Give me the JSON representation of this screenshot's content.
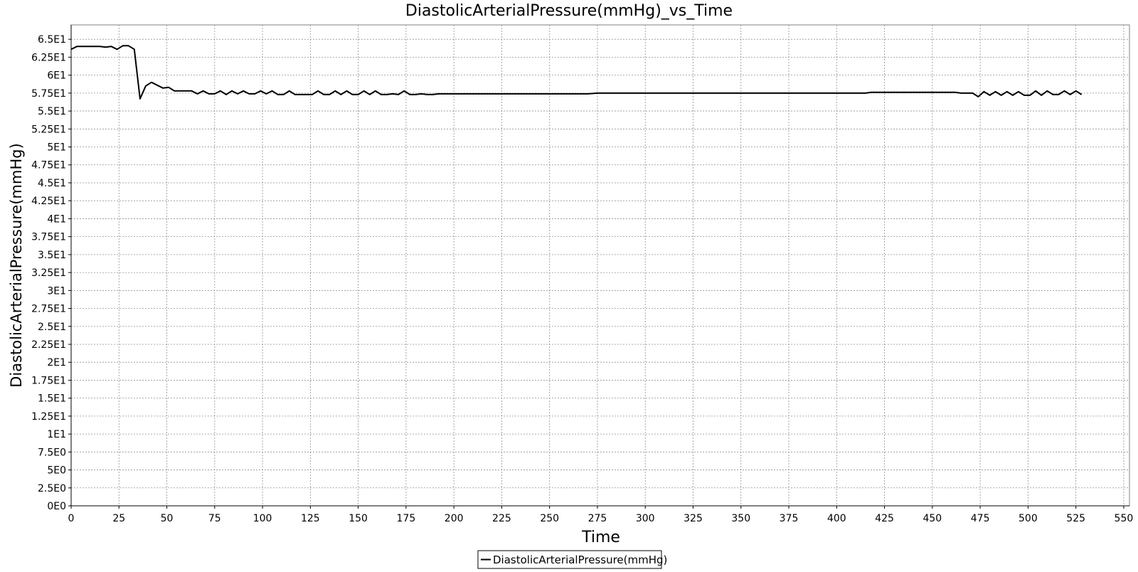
{
  "chart_data": {
    "type": "line",
    "title": "DiastolicArterialPressure(mmHg)_vs_Time",
    "xlabel": "Time",
    "ylabel": "DiastolicArterialPressure(mmHg)",
    "xlim": [
      0,
      553
    ],
    "ylim": [
      0,
      67
    ],
    "grid": true,
    "legend_position": "bottom-center",
    "x_ticks": [
      0,
      25,
      50,
      75,
      100,
      125,
      150,
      175,
      200,
      225,
      250,
      275,
      300,
      325,
      350,
      375,
      400,
      425,
      450,
      475,
      500,
      525,
      550
    ],
    "x_tick_labels": [
      "0",
      "25",
      "50",
      "75",
      "100",
      "125",
      "150",
      "175",
      "200",
      "225",
      "250",
      "275",
      "300",
      "325",
      "350",
      "375",
      "400",
      "425",
      "450",
      "475",
      "500",
      "525",
      "550"
    ],
    "y_ticks": [
      0,
      2.5,
      5,
      7.5,
      10,
      12.5,
      15,
      17.5,
      20,
      22.5,
      25,
      27.5,
      30,
      32.5,
      35,
      37.5,
      40,
      42.5,
      45,
      47.5,
      50,
      52.5,
      55,
      57.5,
      60,
      62.5,
      65
    ],
    "y_tick_labels": [
      "0E0",
      "2.5E0",
      "5E0",
      "7.5E0",
      "1E1",
      "1.25E1",
      "1.5E1",
      "1.75E1",
      "2E1",
      "2.25E1",
      "2.5E1",
      "2.75E1",
      "3E1",
      "3.25E1",
      "3.5E1",
      "3.75E1",
      "4E1",
      "4.25E1",
      "4.5E1",
      "4.75E1",
      "5E1",
      "5.25E1",
      "5.5E1",
      "5.75E1",
      "6E1",
      "6.25E1",
      "6.5E1"
    ],
    "series": [
      {
        "name": "DiastolicArterialPressure(mmHg)",
        "color": "#000000",
        "x": [
          0,
          3,
          6,
          9,
          12,
          15,
          18,
          21,
          24,
          27,
          30,
          33,
          36,
          39,
          42,
          45,
          48,
          51,
          54,
          57,
          60,
          63,
          66,
          69,
          72,
          75,
          78,
          81,
          84,
          87,
          90,
          93,
          96,
          99,
          102,
          105,
          108,
          111,
          114,
          117,
          120,
          123,
          126,
          129,
          132,
          135,
          138,
          141,
          144,
          147,
          150,
          153,
          156,
          159,
          162,
          165,
          168,
          171,
          174,
          177,
          180,
          183,
          186,
          189,
          192,
          200,
          225,
          250,
          270,
          275,
          300,
          325,
          350,
          375,
          400,
          415,
          418,
          440,
          455,
          462,
          465,
          468,
          471,
          474,
          477,
          480,
          483,
          486,
          489,
          492,
          495,
          498,
          501,
          504,
          507,
          510,
          513,
          516,
          519,
          522,
          525,
          528
        ],
        "y": [
          63.6,
          64.0,
          64.0,
          64.0,
          64.0,
          64.0,
          63.9,
          64.0,
          63.6,
          64.1,
          64.1,
          63.6,
          56.7,
          58.5,
          59.0,
          58.6,
          58.2,
          58.3,
          57.8,
          57.8,
          57.8,
          57.8,
          57.4,
          57.8,
          57.4,
          57.4,
          57.8,
          57.3,
          57.8,
          57.4,
          57.8,
          57.4,
          57.4,
          57.8,
          57.4,
          57.8,
          57.3,
          57.3,
          57.8,
          57.3,
          57.3,
          57.3,
          57.3,
          57.8,
          57.3,
          57.3,
          57.8,
          57.3,
          57.8,
          57.3,
          57.3,
          57.8,
          57.3,
          57.8,
          57.3,
          57.3,
          57.4,
          57.3,
          57.8,
          57.3,
          57.3,
          57.4,
          57.3,
          57.3,
          57.4,
          57.4,
          57.4,
          57.4,
          57.4,
          57.5,
          57.5,
          57.5,
          57.5,
          57.5,
          57.5,
          57.5,
          57.6,
          57.6,
          57.6,
          57.6,
          57.5,
          57.5,
          57.5,
          57.0,
          57.7,
          57.2,
          57.7,
          57.2,
          57.7,
          57.2,
          57.7,
          57.2,
          57.2,
          57.8,
          57.2,
          57.8,
          57.3,
          57.3,
          57.8,
          57.3,
          57.8,
          57.3
        ]
      }
    ]
  }
}
